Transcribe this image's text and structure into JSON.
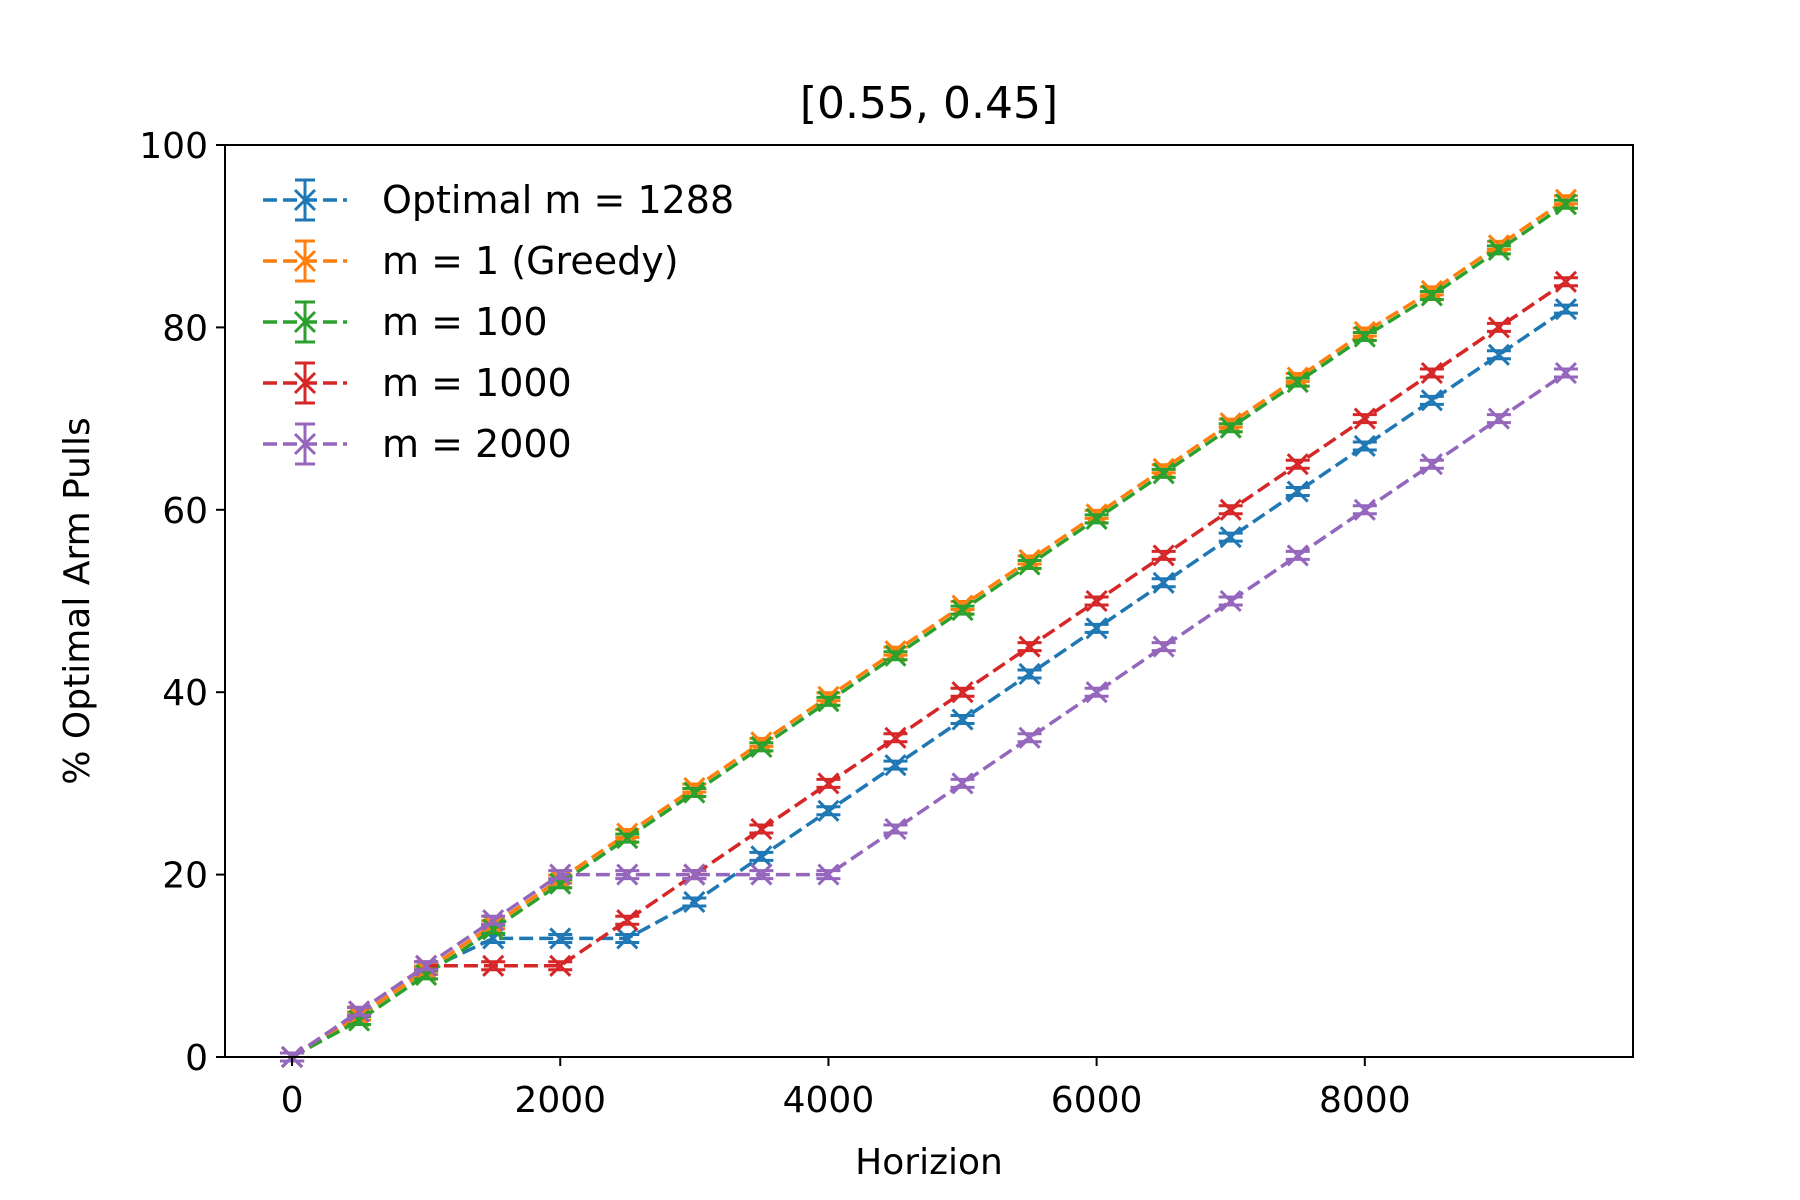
{
  "chart_data": {
    "type": "line",
    "title": "[0.55, 0.45]",
    "xlabel": "Horizion",
    "ylabel": "% Optimal Arm Pulls",
    "xlim": [
      -500,
      10000
    ],
    "ylim": [
      0,
      100
    ],
    "xticks": [
      0,
      2000,
      4000,
      6000,
      8000
    ],
    "yticks": [
      0,
      20,
      40,
      60,
      80,
      100
    ],
    "grid": false,
    "legend_position": "top-left",
    "marker": "x",
    "line_style": "dashed",
    "error_bars": true,
    "x": [
      0,
      500,
      1000,
      1500,
      2000,
      2500,
      3000,
      3500,
      4000,
      4500,
      5000,
      5500,
      6000,
      6500,
      7000,
      7500,
      8000,
      8500,
      9000,
      9500
    ],
    "series": [
      {
        "name": "Optimal m = 1288",
        "color": "#1f77b4",
        "values": [
          0,
          4.5,
          9.5,
          13,
          13,
          13,
          17,
          22,
          27,
          32,
          37,
          42,
          47,
          52,
          57,
          62,
          67,
          72,
          77,
          82
        ]
      },
      {
        "name": "m = 1 (Greedy)",
        "color": "#ff7f0e",
        "values": [
          0,
          4.5,
          9.5,
          14.5,
          19.5,
          24.5,
          29.5,
          34.5,
          39.5,
          44.5,
          49.5,
          54.5,
          59.5,
          64.5,
          69.5,
          74.5,
          79.5,
          84,
          89,
          94
        ]
      },
      {
        "name": "m = 100",
        "color": "#2ca02c",
        "values": [
          0,
          4,
          9,
          14,
          19,
          24,
          29,
          34,
          39,
          44,
          49,
          54,
          59,
          64,
          69,
          74,
          79,
          83.5,
          88.5,
          93.5
        ]
      },
      {
        "name": "m = 1000",
        "color": "#d62728",
        "values": [
          0,
          5,
          10,
          10,
          10,
          15,
          20,
          25,
          30,
          35,
          40,
          45,
          50,
          55,
          60,
          65,
          70,
          75,
          80,
          85
        ]
      },
      {
        "name": "m = 2000",
        "color": "#9467bd",
        "values": [
          0,
          5,
          10,
          15,
          20,
          20,
          20,
          20,
          20,
          25,
          30,
          35,
          40,
          45,
          50,
          55,
          60,
          65,
          70,
          75
        ]
      }
    ]
  }
}
